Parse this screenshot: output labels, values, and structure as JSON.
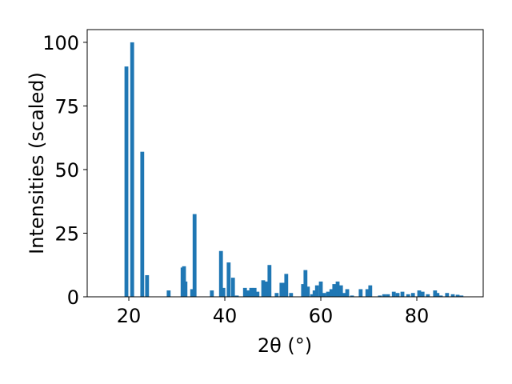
{
  "chart_data": {
    "type": "bar",
    "xlabel": "2θ (°)",
    "ylabel": "Intensities (scaled)",
    "color": "#1f77b4",
    "bar_width": 0.8,
    "x": [
      19.5,
      20.7,
      22.8,
      23.8,
      28.3,
      31.2,
      31.5,
      31.8,
      33.2,
      33.7,
      37.3,
      39.2,
      39.7,
      40.8,
      41.7,
      42.5,
      44.2,
      44.8,
      45.5,
      46.2,
      46.8,
      48,
      48.7,
      49.3,
      50.8,
      51.8,
      52.3,
      52.8,
      53.8,
      56.3,
      56.8,
      57.3,
      58.2,
      58.7,
      59.2,
      60,
      60.7,
      61.5,
      62.2,
      62.8,
      63.5,
      64.2,
      64.8,
      65.5,
      66.5,
      68.3,
      69.7,
      70.3,
      72.3,
      73.2,
      74,
      75.2,
      76,
      77,
      78.2,
      79.2,
      80.5,
      81.2,
      82.3,
      83.8,
      84.3,
      85,
      86.3,
      87.5,
      88.5,
      89.3
    ],
    "values": [
      90.5,
      100,
      57,
      8.5,
      2.5,
      11.5,
      12,
      6,
      3,
      32.5,
      2.5,
      18,
      3.5,
      13.5,
      7.5,
      0.5,
      3.5,
      2.5,
      3.5,
      3.5,
      2,
      6.5,
      6,
      12.5,
      1.5,
      5.5,
      5.5,
      9,
      1.5,
      5,
      10.5,
      4,
      1,
      2.5,
      4.5,
      6,
      1.5,
      2,
      3,
      5,
      6,
      4.5,
      1.5,
      3,
      0.5,
      3,
      3,
      4.5,
      0.5,
      1,
      1,
      2,
      1.5,
      2,
      1,
      1.5,
      2.5,
      2,
      1,
      2.5,
      1.5,
      0.5,
      1.5,
      1,
      0.8,
      0.5
    ],
    "xlim": [
      11.33,
      93.83
    ],
    "ylim": [
      0,
      105
    ],
    "xticks": [
      20,
      40,
      60,
      80
    ],
    "yticks": [
      0,
      25,
      50,
      75,
      100
    ]
  }
}
